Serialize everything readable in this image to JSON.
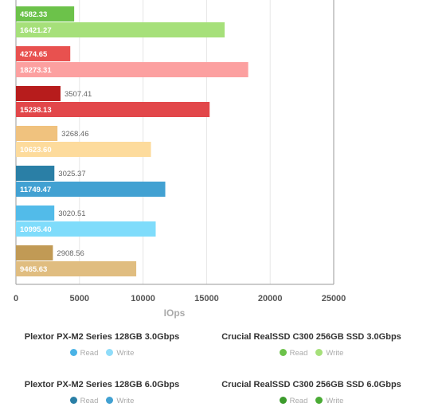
{
  "chart_data": {
    "type": "bar",
    "orientation": "horizontal",
    "xlabel": "IOps",
    "xlim": [
      0,
      25000
    ],
    "x_ticks": [
      "0",
      "5000",
      "10000",
      "15000",
      "20000",
      "25000"
    ],
    "grid": true,
    "groups": [
      {
        "bars": [
          {
            "value": 4582.33,
            "label": "4582.33",
            "color": "#6cc24a",
            "label_inside": true
          },
          {
            "value": 16421.27,
            "label": "16421.27",
            "color": "#a6e07a",
            "label_inside": true
          }
        ]
      },
      {
        "bars": [
          {
            "value": 4274.65,
            "label": "4274.65",
            "color": "#e8514f",
            "label_inside": true
          },
          {
            "value": 18273.31,
            "label": "18273.31",
            "color": "#fca0a0",
            "label_inside": true
          }
        ]
      },
      {
        "bars": [
          {
            "value": 3507.41,
            "label": "3507.41",
            "color": "#b71c1c",
            "label_inside": false
          },
          {
            "value": 15238.13,
            "label": "15238.13",
            "color": "#e2474a",
            "label_inside": true
          }
        ]
      },
      {
        "bars": [
          {
            "value": 3268.46,
            "label": "3268.46",
            "color": "#f0c27e",
            "label_inside": false
          },
          {
            "value": 10623.6,
            "label": "10623.60",
            "color": "#fddb9c",
            "label_inside": true
          }
        ]
      },
      {
        "bars": [
          {
            "value": 3025.37,
            "label": "3025.37",
            "color": "#2a7fa6",
            "label_inside": false
          },
          {
            "value": 11749.47,
            "label": "11749.47",
            "color": "#42a1d2",
            "label_inside": true
          }
        ]
      },
      {
        "bars": [
          {
            "value": 3020.51,
            "label": "3020.51",
            "color": "#52bbe9",
            "label_inside": false
          },
          {
            "value": 10995.4,
            "label": "10995.40",
            "color": "#7fdcfb",
            "label_inside": true
          }
        ]
      },
      {
        "bars": [
          {
            "value": 2908.56,
            "label": "2908.56",
            "color": "#c19a55",
            "label_inside": false
          },
          {
            "value": 9465.63,
            "label": "9465.63",
            "color": "#e0bd80",
            "label_inside": true
          }
        ]
      }
    ],
    "legend": [
      {
        "title": "Plextor PX-M2 Series 128GB 3.0Gbps",
        "items": [
          {
            "name": "Read",
            "color": "#4ab3e6"
          },
          {
            "name": "Write",
            "color": "#8fdcf9"
          }
        ]
      },
      {
        "title": "Crucial RealSSD C300 256GB SSD 3.0Gbps",
        "items": [
          {
            "name": "Read",
            "color": "#6cc24a"
          },
          {
            "name": "Write",
            "color": "#a6e07a"
          }
        ]
      },
      {
        "title": "Plextor PX-M2 Series 128GB 6.0Gbps",
        "items": [
          {
            "name": "Read",
            "color": "#2a7fa6"
          },
          {
            "name": "Write",
            "color": "#42a1d2"
          }
        ]
      },
      {
        "title": "Crucial RealSSD C300 256GB SSD 6.0Gbps",
        "items": [
          {
            "name": "Read",
            "color": "#3c9b2c"
          },
          {
            "name": "Write",
            "color": "#4aab35"
          }
        ]
      }
    ]
  }
}
